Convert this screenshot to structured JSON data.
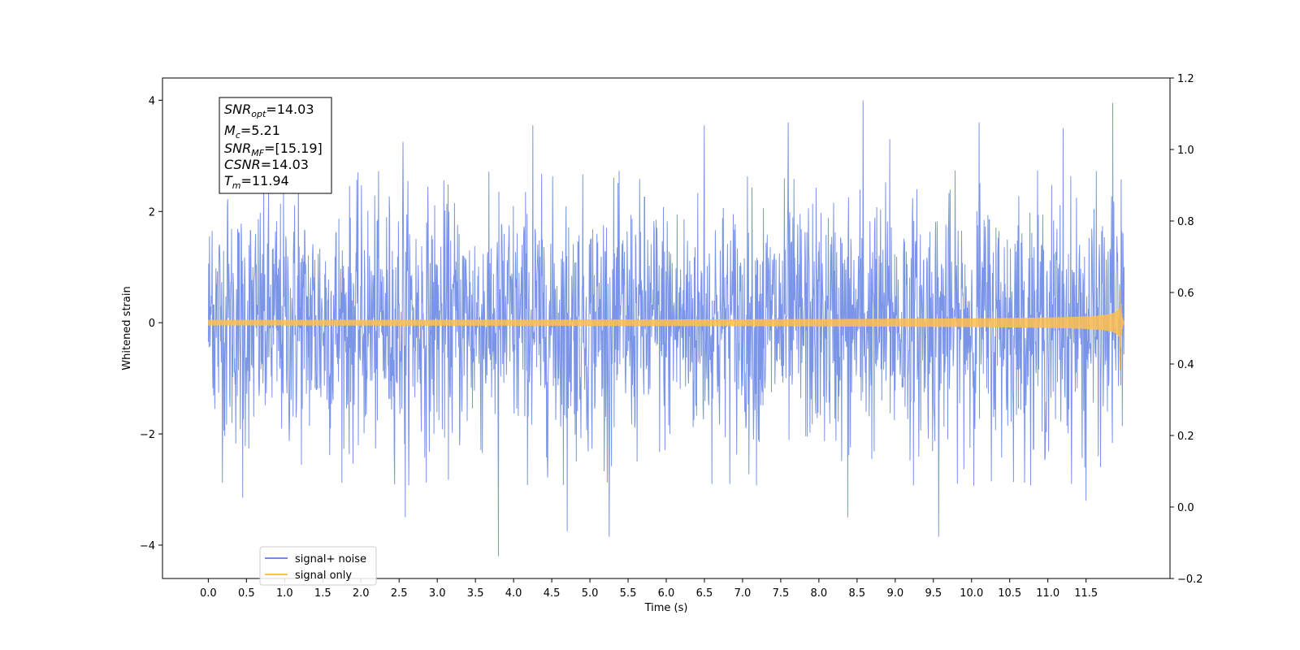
{
  "chart_data": {
    "type": "line",
    "title": "",
    "xlabel": "Time (s)",
    "ylabel": "Whitened strain",
    "xlim": [
      -0.6,
      12.6
    ],
    "ylim": [
      -4.6,
      4.4
    ],
    "y2lim": [
      -0.2,
      1.2
    ],
    "x_ticks": [
      0.0,
      0.5,
      1.0,
      1.5,
      2.0,
      2.5,
      3.0,
      3.5,
      4.0,
      4.5,
      5.0,
      5.5,
      6.0,
      6.5,
      7.0,
      7.5,
      8.0,
      8.5,
      9.0,
      9.5,
      10.0,
      10.5,
      11.0,
      11.5
    ],
    "x_tick_labels": [
      "0.0",
      "0.5",
      "1.0",
      "1.5",
      "2.0",
      "2.5",
      "3.0",
      "3.5",
      "4.0",
      "4.5",
      "5.0",
      "5.5",
      "6.0",
      "6.5",
      "7.0",
      "7.5",
      "8.0",
      "8.5",
      "9.0",
      "9.5",
      "10.0",
      "10.5",
      "11.0",
      "11.5"
    ],
    "y_ticks": [
      -4,
      -2,
      0,
      2,
      4
    ],
    "y_tick_labels": [
      "−4",
      "−2",
      "0",
      "2",
      "4"
    ],
    "y2_ticks": [
      -0.2,
      0.0,
      0.2,
      0.4,
      0.6,
      0.8,
      1.0,
      1.2
    ],
    "y2_tick_labels": [
      "−0.2",
      "0.0",
      "0.2",
      "0.4",
      "0.6",
      "0.8",
      "1.0",
      "1.2"
    ],
    "legend_position": "lower-left",
    "series": [
      {
        "name": "signal+ noise",
        "color": "#6f8be6",
        "x_start": 0.0,
        "x_end": 12.0,
        "noise_std": 1.0,
        "envelope_max": 2.3,
        "peaks": [
          {
            "x": 0.05,
            "y": 1.65
          },
          {
            "x": 0.25,
            "y": 2.1
          },
          {
            "x": 0.45,
            "y": -3.15
          },
          {
            "x": 1.18,
            "y": 2.9
          },
          {
            "x": 2.55,
            "y": 3.25
          },
          {
            "x": 2.58,
            "y": -3.5
          },
          {
            "x": 3.8,
            "y": -4.2
          },
          {
            "x": 4.25,
            "y": 3.55
          },
          {
            "x": 4.7,
            "y": -3.75
          },
          {
            "x": 5.25,
            "y": -3.85
          },
          {
            "x": 6.5,
            "y": 3.55
          },
          {
            "x": 7.6,
            "y": 3.6
          },
          {
            "x": 8.38,
            "y": -3.5
          },
          {
            "x": 8.58,
            "y": 4.0
          },
          {
            "x": 8.93,
            "y": 3.3
          },
          {
            "x": 9.57,
            "y": -3.85
          },
          {
            "x": 10.1,
            "y": 3.6
          },
          {
            "x": 11.2,
            "y": 3.5
          },
          {
            "x": 11.85,
            "y": 3.95
          },
          {
            "x": 11.5,
            "y": -3.2
          }
        ]
      },
      {
        "name": "signal only",
        "color": "#ffc04d",
        "x_start": 0.0,
        "x_end": 12.0,
        "merger_time": 11.94,
        "amplitude_start": 0.05,
        "amplitude_peak": 1.2
      }
    ]
  },
  "annotation": {
    "lines": [
      {
        "sym": "SNR",
        "sub": "opt",
        "value": "=14.03"
      },
      {
        "sym": "M",
        "sub": "c",
        "value": "=5.21"
      },
      {
        "sym": "SNR",
        "sub": "MF",
        "value": "=[15.19]"
      },
      {
        "sym": "CSNR",
        "sub": "",
        "value": "=14.03"
      },
      {
        "sym": "T",
        "sub": "m",
        "value": "=11.94"
      }
    ]
  },
  "legend": {
    "items": [
      {
        "label": "signal+ noise",
        "color": "#6f8be6"
      },
      {
        "label": "signal only",
        "color": "#ffc04d"
      }
    ]
  }
}
